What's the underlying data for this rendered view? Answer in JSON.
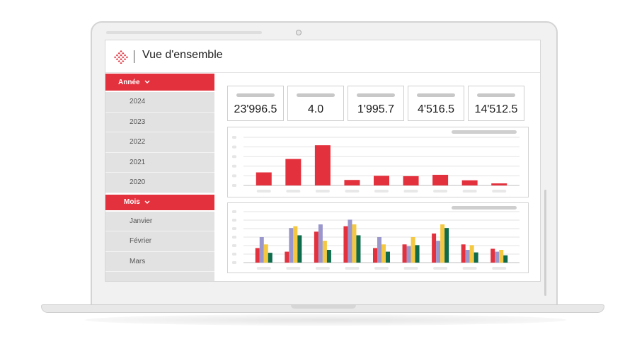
{
  "header": {
    "title": "Vue d'ensemble",
    "logo": "diamond-logo-icon"
  },
  "sidebar": {
    "sections": [
      {
        "label": "Année",
        "items": [
          "2024",
          "2023",
          "2022",
          "2021",
          "2020"
        ]
      },
      {
        "label": "Mois",
        "items": [
          "Janvier",
          "Février",
          "Mars"
        ]
      }
    ]
  },
  "kpis": [
    {
      "value": "23'996.5"
    },
    {
      "value": "4.0"
    },
    {
      "value": "1'995.7"
    },
    {
      "value": "4'516.5"
    },
    {
      "value": "14'512.5"
    }
  ],
  "colors": {
    "accent": "#e3313d",
    "series": [
      "#e3313d",
      "#9a97cc",
      "#f5c842",
      "#0e6b4c"
    ]
  },
  "chart_data": [
    {
      "type": "bar",
      "categories": [
        "",
        "",
        "",
        "",
        "",
        "",
        "",
        "",
        ""
      ],
      "values": [
        38,
        77,
        117,
        16,
        28,
        27,
        31,
        15,
        6
      ],
      "ylim": [
        0,
        140
      ],
      "grid": true
    },
    {
      "type": "bar",
      "categories": [
        "",
        "",
        "",
        "",
        "",
        "",
        "",
        "",
        ""
      ],
      "series": [
        {
          "values": [
            40,
            30,
            85,
            100,
            40,
            50,
            80,
            50,
            38
          ]
        },
        {
          "values": [
            70,
            95,
            105,
            118,
            70,
            45,
            60,
            35,
            30
          ]
        },
        {
          "values": [
            50,
            100,
            60,
            105,
            50,
            70,
            105,
            48,
            35
          ]
        },
        {
          "values": [
            27,
            75,
            35,
            75,
            30,
            48,
            95,
            28,
            20
          ]
        }
      ],
      "ylim": [
        0,
        140
      ],
      "grid": true
    }
  ]
}
